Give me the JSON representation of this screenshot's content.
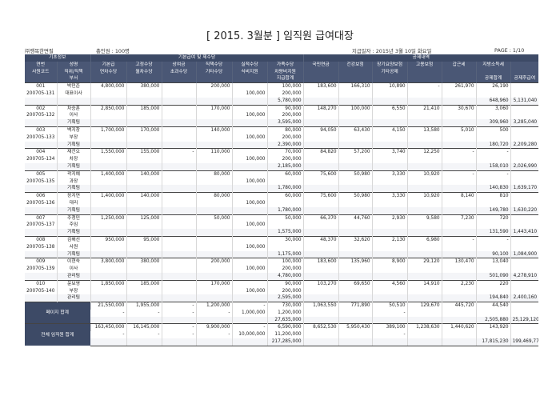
{
  "report": {
    "title": "[ 2015. 3월분 ]   임직원 급여대장",
    "company": "㈜행복한면필",
    "headcount": "총인원 : 100명",
    "pay_date": "지급일자 : 2015년 3월 10일 화요일",
    "page": "PAGE : 1/10"
  },
  "header": {
    "row1": [
      "기초정보",
      "기본급여 및 제수당",
      "공제내역"
    ],
    "row2": [
      "연번",
      "성명",
      "기본급",
      "고정수당",
      "상여금",
      "직책수당",
      "실적수당",
      "가족수당",
      "국민연금",
      "건강보험",
      "장기요양보험",
      "고용보험",
      "갑근세",
      "지방소득세",
      ""
    ],
    "row3": [
      "사원코드",
      "직위/직책",
      "연차수당",
      "월차수당",
      "초과수당",
      "기타수당",
      "식비지원",
      "차량비지원",
      "",
      "",
      "기타공제",
      "",
      "",
      "",
      ""
    ],
    "row4": [
      "",
      "부서",
      "",
      "",
      "",
      "",
      "",
      "지급합계",
      "",
      "",
      "",
      "",
      "",
      "공제합계",
      "공제후급여"
    ]
  },
  "employees": [
    {
      "no": "001",
      "name": "박민준",
      "code": "200705-131",
      "position": "대표이사",
      "dept": "",
      "l1": [
        "4,800,000",
        "380,000",
        "",
        "200,000",
        "",
        "100,000",
        "183,600",
        "166,310",
        "10,890",
        "-",
        "261,970",
        "26,190",
        ""
      ],
      "l2": [
        "",
        "",
        "",
        "",
        "100,000",
        "200,000",
        "",
        "",
        "",
        "",
        "",
        "",
        ""
      ],
      "l3": [
        "",
        "",
        "",
        "",
        "",
        "5,780,000",
        "",
        "",
        "",
        "",
        "",
        "648,960",
        "5,131,040"
      ]
    },
    {
      "no": "002",
      "name": "차승훈",
      "code": "200705-132",
      "position": "이사",
      "dept": "기획팀",
      "l1": [
        "2,850,000",
        "185,000",
        "",
        "170,000",
        "",
        "90,000",
        "148,270",
        "100,000",
        "6,550",
        "21,410",
        "30,670",
        "3,060",
        ""
      ],
      "l2": [
        "",
        "",
        "",
        "",
        "100,000",
        "200,000",
        "",
        "",
        "",
        "",
        "",
        "",
        ""
      ],
      "l3": [
        "",
        "",
        "",
        "",
        "",
        "3,595,000",
        "",
        "",
        "",
        "",
        "",
        "309,960",
        "3,285,040"
      ]
    },
    {
      "no": "003",
      "name": "백지창",
      "code": "200705-133",
      "position": "부장",
      "dept": "기획팀",
      "l1": [
        "1,700,000",
        "170,000",
        "",
        "140,000",
        "",
        "80,000",
        "94,050",
        "63,430",
        "4,150",
        "13,580",
        "5,010",
        "500",
        ""
      ],
      "l2": [
        "",
        "",
        "",
        "",
        "100,000",
        "200,000",
        "",
        "",
        "",
        "",
        "",
        "",
        ""
      ],
      "l3": [
        "",
        "",
        "",
        "",
        "",
        "2,390,000",
        "",
        "",
        "",
        "",
        "",
        "180,720",
        "2,209,280"
      ]
    },
    {
      "no": "004",
      "name": "재건오",
      "code": "200705-134",
      "position": "차장",
      "dept": "기획팀",
      "l1": [
        "1,550,000",
        "155,000",
        "-",
        "110,000",
        "",
        "70,000",
        "84,820",
        "57,200",
        "3,740",
        "12,250",
        "-",
        "-",
        ""
      ],
      "l2": [
        "",
        "",
        "",
        "",
        "100,000",
        "200,000",
        "",
        "",
        "",
        "",
        "",
        "",
        ""
      ],
      "l3": [
        "",
        "",
        "",
        "",
        "",
        "2,185,000",
        "",
        "",
        "",
        "",
        "",
        "158,010",
        "2,026,990"
      ]
    },
    {
      "no": "005",
      "name": "곽지예",
      "code": "200705-135",
      "position": "과장",
      "dept": "기획팀",
      "l1": [
        "1,400,000",
        "140,000",
        "",
        "80,000",
        "",
        "60,000",
        "75,600",
        "50,980",
        "3,330",
        "10,920",
        "-",
        "-",
        ""
      ],
      "l2": [
        "",
        "",
        "",
        "",
        "100,000",
        "",
        "",
        "",
        "",
        "",
        "",
        "",
        ""
      ],
      "l3": [
        "",
        "",
        "",
        "",
        "",
        "1,780,000",
        "",
        "",
        "",
        "",
        "",
        "140,830",
        "1,639,170"
      ]
    },
    {
      "no": "006",
      "name": "장지연",
      "code": "200705-136",
      "position": "대리",
      "dept": "기획팀",
      "l1": [
        "1,400,000",
        "140,000",
        "",
        "80,000",
        "",
        "60,000",
        "75,600",
        "50,980",
        "3,330",
        "10,920",
        "8,140",
        "810",
        ""
      ],
      "l2": [
        "",
        "",
        "",
        "",
        "100,000",
        "",
        "",
        "",
        "",
        "",
        "",
        "",
        ""
      ],
      "l3": [
        "",
        "",
        "",
        "",
        "",
        "1,780,000",
        "",
        "",
        "",
        "",
        "",
        "149,780",
        "1,630,220"
      ]
    },
    {
      "no": "007",
      "name": "주청민",
      "code": "200705-137",
      "position": "주임",
      "dept": "기획팀",
      "l1": [
        "1,250,000",
        "125,000",
        "",
        "50,000",
        "",
        "50,000",
        "66,370",
        "44,760",
        "2,930",
        "9,580",
        "7,230",
        "720",
        ""
      ],
      "l2": [
        "",
        "",
        "",
        "",
        "100,000",
        "",
        "",
        "",
        "",
        "",
        "",
        "",
        ""
      ],
      "l3": [
        "",
        "",
        "",
        "",
        "",
        "1,575,000",
        "",
        "",
        "",
        "",
        "",
        "131,590",
        "1,443,410"
      ]
    },
    {
      "no": "008",
      "name": "김해선",
      "code": "200705-138",
      "position": "사원",
      "dept": "기획팀",
      "l1": [
        "950,000",
        "95,000",
        "",
        "",
        "",
        "30,000",
        "48,370",
        "32,620",
        "2,130",
        "6,980",
        "-",
        "-",
        ""
      ],
      "l2": [
        "",
        "",
        "",
        "",
        "100,000",
        "",
        "",
        "",
        "",
        "",
        "",
        "",
        ""
      ],
      "l3": [
        "",
        "",
        "",
        "",
        "",
        "1,175,000",
        "",
        "",
        "",
        "",
        "",
        "90,100",
        "1,084,900"
      ]
    },
    {
      "no": "009",
      "name": "이현숙",
      "code": "200705-139",
      "position": "이사",
      "dept": "관리팀",
      "l1": [
        "3,800,000",
        "380,000",
        "",
        "200,000",
        "",
        "100,000",
        "183,600",
        "135,960",
        "8,900",
        "29,120",
        "130,470",
        "13,040",
        ""
      ],
      "l2": [
        "",
        "",
        "",
        "",
        "100,000",
        "200,000",
        "",
        "",
        "",
        "",
        "",
        "",
        ""
      ],
      "l3": [
        "",
        "",
        "",
        "",
        "",
        "4,780,000",
        "",
        "",
        "",
        "",
        "",
        "501,090",
        "4,278,910"
      ]
    },
    {
      "no": "010",
      "name": "윤보영",
      "code": "200705-140",
      "position": "부장",
      "dept": "관리팀",
      "l1": [
        "1,850,000",
        "185,000",
        "",
        "170,000",
        "",
        "90,000",
        "103,270",
        "69,650",
        "4,560",
        "14,910",
        "2,230",
        "220",
        ""
      ],
      "l2": [
        "",
        "",
        "",
        "",
        "100,000",
        "200,000",
        "",
        "",
        "",
        "",
        "",
        "",
        ""
      ],
      "l3": [
        "",
        "",
        "",
        "",
        "",
        "2,595,000",
        "",
        "",
        "",
        "",
        "",
        "194,840",
        "2,400,160"
      ]
    }
  ],
  "page_total": {
    "label": "페이지 합계",
    "l1": [
      "21,550,000",
      "1,955,000",
      "-",
      "1,200,000",
      "-",
      "730,000",
      "1,063,550",
      "771,890",
      "50,510",
      "129,670",
      "445,720",
      "44,540",
      ""
    ],
    "l2": [
      "-",
      "-",
      "-",
      "-",
      "1,000,000",
      "1,200,000",
      "",
      "",
      "-",
      "",
      "",
      "",
      ""
    ],
    "l3": [
      "",
      "",
      "",
      "",
      "",
      "27,635,000",
      "",
      "",
      "",
      "",
      "",
      "2,505,880",
      "25,129,120"
    ]
  },
  "grand_total": {
    "label": "전체 임직원 합계",
    "l1": [
      "163,450,000",
      "16,145,000",
      "-",
      "9,900,000",
      "-",
      "6,590,000",
      "8,652,530",
      "5,950,430",
      "389,100",
      "1,238,630",
      "1,440,620",
      "143,920",
      ""
    ],
    "l2": [
      "-",
      "-",
      "-",
      "-",
      "10,000,000",
      "11,200,000",
      "",
      "",
      "-",
      "",
      "",
      "",
      ""
    ],
    "l3": [
      "",
      "",
      "",
      "",
      "",
      "217,285,000",
      "",
      "",
      "",
      "",
      "",
      "17,815,230",
      "199,469,770"
    ]
  }
}
